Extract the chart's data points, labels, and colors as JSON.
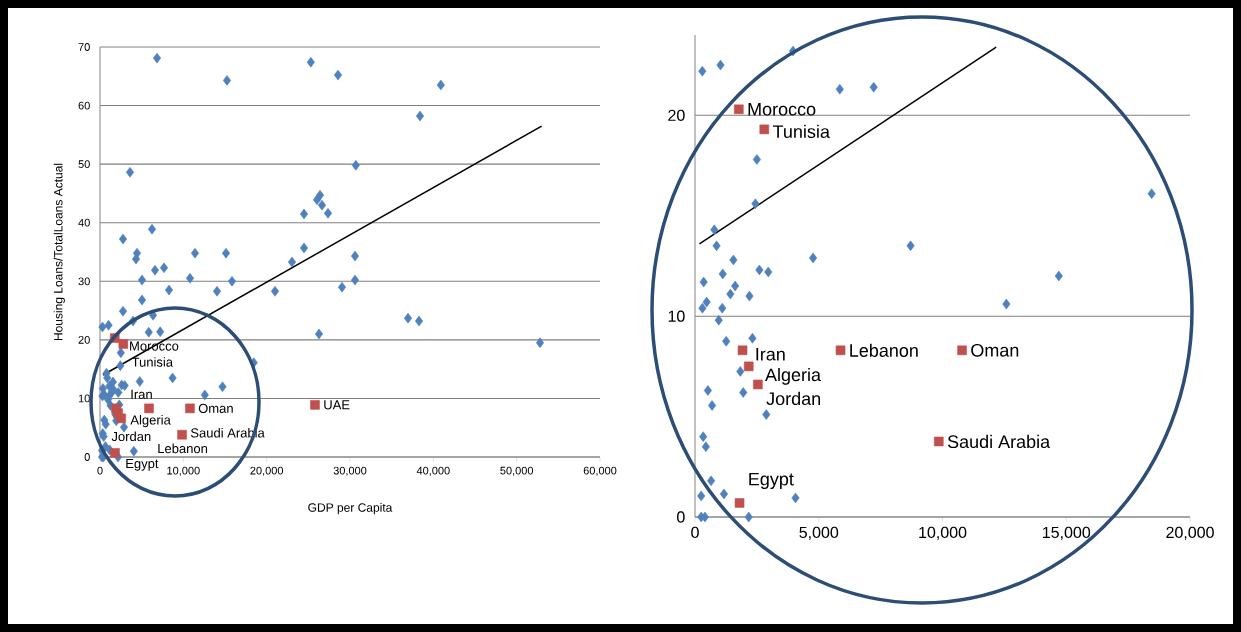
{
  "chart_data": [
    {
      "type": "scatter",
      "xlabel": "GDP per Capita",
      "ylabel": "Housing Loans/TotalLoans Actual",
      "xlim": [
        0,
        60000
      ],
      "ylim": [
        0,
        70
      ],
      "xticks": [
        {
          "value": 0,
          "label": "0"
        },
        {
          "value": 10000,
          "label": "10,000"
        },
        {
          "value": 20000,
          "label": "20,000"
        },
        {
          "value": 30000,
          "label": "30,000"
        },
        {
          "value": 40000,
          "label": "40,000"
        },
        {
          "value": 50000,
          "label": "50,000"
        },
        {
          "value": 60000,
          "label": "60,000"
        }
      ],
      "yticks": [
        0,
        10,
        20,
        30,
        40,
        50,
        60,
        70
      ],
      "grid": "y",
      "series": [
        {
          "color": "#4f81bd",
          "marker": "diamond",
          "x": [
            296,
            1030,
            3960,
            5850,
            7220,
            18450,
            2500,
            2440,
            780,
            870,
            8710,
            4770,
            1550,
            1120,
            2600,
            2960,
            350,
            1620,
            1430,
            2200,
            14700,
            12580,
            470,
            300,
            1100,
            960,
            1260,
            2320,
            1830,
            1950,
            2880,
            520,
            690,
            330,
            440,
            650,
            250,
            1170,
            4060,
            250,
            400,
            2170,
            6840,
            15240,
            25300,
            28560,
            40900,
            38400,
            3600,
            30700,
            2760,
            6240,
            4440,
            4320,
            11400,
            15120,
            24480,
            24480,
            26400,
            26040,
            26640,
            27360,
            6600,
            7680,
            5040,
            10800,
            15840,
            8280,
            14040,
            21000,
            23040,
            30600,
            30600,
            29040,
            5040,
            36960,
            38280,
            26280,
            52800,
            2760,
            6360
          ],
          "values": [
            22.2,
            22.5,
            23.2,
            21.3,
            21.4,
            16.1,
            17.8,
            15.6,
            14.3,
            13.5,
            13.5,
            12.9,
            12.8,
            12.1,
            12.3,
            12.2,
            11.7,
            11.5,
            11.1,
            11.0,
            12.0,
            10.6,
            10.7,
            10.4,
            10.4,
            9.8,
            8.8,
            8.9,
            7.3,
            6.2,
            5.1,
            6.3,
            5.6,
            4.0,
            3.5,
            1.8,
            1.1,
            1.2,
            1.0,
            0,
            0,
            0,
            68.1,
            64.3,
            67.4,
            65.2,
            63.5,
            58.2,
            48.6,
            49.8,
            37.2,
            38.9,
            34.8,
            33.8,
            34.8,
            34.8,
            35.7,
            41.5,
            44.7,
            43.9,
            43.0,
            41.6,
            31.9,
            32.3,
            30.2,
            30.5,
            30.0,
            28.5,
            28.3,
            28.3,
            33.3,
            34.3,
            30.2,
            29.0,
            26.8,
            23.7,
            23.2,
            21.0,
            19.5,
            24.9,
            24.2
          ]
        },
        {
          "color": "#c0504d",
          "marker": "square",
          "x": [
            1770,
            2800,
            1920,
            2170,
            2540,
            5880,
            10790,
            9850,
            1800,
            25800
          ],
          "values": [
            20.3,
            19.3,
            8.3,
            7.5,
            6.6,
            8.3,
            8.3,
            3.8,
            0.7,
            8.9
          ]
        },
        {
          "type": "line",
          "color": "#000000",
          "marker": "none",
          "x": [
            360,
            53000
          ],
          "values": [
            14.0,
            56.5
          ]
        }
      ],
      "annotations": [
        {
          "text": "Morocco",
          "x": 1770,
          "y": 20.3
        },
        {
          "text": "Tunisia",
          "x": 2800,
          "y": 19.3
        },
        {
          "text": "Iran",
          "x": 1920,
          "y": 8.3
        },
        {
          "text": "Lebanon",
          "x": 5880,
          "y": 8.3
        },
        {
          "text": "Oman",
          "x": 10790,
          "y": 8.3
        },
        {
          "text": "Algeria",
          "x": 2170,
          "y": 7.5
        },
        {
          "text": "Jordan",
          "x": 2540,
          "y": 6.6
        },
        {
          "text": "Saudi Arabia",
          "x": 9850,
          "y": 3.8
        },
        {
          "text": "Egypt",
          "x": 1800,
          "y": 0.7
        },
        {
          "text": "UAE",
          "x": 25800,
          "y": 8.9
        }
      ]
    },
    {
      "type": "scatter",
      "xlim": [
        0,
        20000
      ],
      "ylim": [
        0,
        24
      ],
      "xticks": [
        {
          "value": 0,
          "label": "0"
        },
        {
          "value": 5000,
          "label": "5,000"
        },
        {
          "value": 10000,
          "label": "10,000"
        },
        {
          "value": 15000,
          "label": "15,000"
        },
        {
          "value": 20000,
          "label": "20,000"
        }
      ],
      "yticks": [
        0,
        10,
        20
      ],
      "grid": "y",
      "series": [
        {
          "color": "#4f81bd",
          "marker": "diamond",
          "x": [
            296,
            1030,
            3960,
            5850,
            7220,
            18450,
            2500,
            2440,
            780,
            870,
            8710,
            4770,
            1550,
            1120,
            2600,
            2960,
            350,
            1620,
            1430,
            2200,
            14700,
            12580,
            470,
            300,
            1100,
            960,
            1260,
            2320,
            1830,
            1950,
            2880,
            520,
            690,
            330,
            440,
            650,
            250,
            1170,
            4060,
            250,
            400,
            2170
          ],
          "values": [
            22.2,
            22.5,
            23.2,
            21.3,
            21.4,
            16.1,
            17.8,
            15.6,
            14.3,
            13.5,
            13.5,
            12.9,
            12.8,
            12.1,
            12.3,
            12.2,
            11.7,
            11.5,
            11.1,
            11.0,
            12.0,
            10.6,
            10.7,
            10.4,
            10.4,
            9.8,
            8.75,
            8.9,
            7.25,
            6.2,
            5.1,
            6.3,
            5.55,
            4.0,
            3.5,
            1.8,
            1.05,
            1.15,
            0.95,
            0,
            0,
            0
          ]
        },
        {
          "color": "#c0504d",
          "marker": "square",
          "x": [
            1770,
            2800,
            1920,
            2170,
            2540,
            5880,
            10790,
            9850,
            1800
          ],
          "values": [
            20.3,
            19.3,
            8.3,
            7.5,
            6.6,
            8.3,
            8.3,
            3.76,
            0.7
          ]
        },
        {
          "type": "line",
          "color": "#000000",
          "marker": "none",
          "x": [
            180,
            12170
          ],
          "values": [
            13.6,
            23.4
          ]
        }
      ],
      "annotations": [
        {
          "text": "Morocco",
          "x": 1770,
          "y": 20.3
        },
        {
          "text": "Tunisia",
          "x": 2800,
          "y": 19.3
        },
        {
          "text": "Iran",
          "x": 1920,
          "y": 8.3
        },
        {
          "text": "Lebanon",
          "x": 5880,
          "y": 8.3
        },
        {
          "text": "Oman",
          "x": 10790,
          "y": 8.3
        },
        {
          "text": "Algeria",
          "x": 2170,
          "y": 7.5
        },
        {
          "text": "Jordan",
          "x": 2540,
          "y": 6.6
        },
        {
          "text": "Saudi Arabia",
          "x": 9850,
          "y": 3.76
        },
        {
          "text": "Egypt",
          "x": 1800,
          "y": 0.7
        }
      ]
    }
  ]
}
